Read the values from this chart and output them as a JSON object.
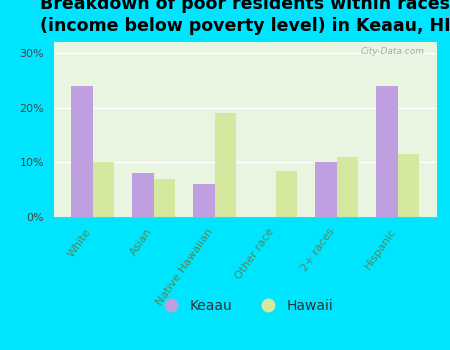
{
  "title": "Breakdown of poor residents within races\n(income below poverty level) in Keaau, HI",
  "categories": [
    "White",
    "Asian",
    "Native Hawaiian",
    "Other race",
    "2+ races",
    "Hispanic"
  ],
  "keaau_values": [
    24,
    8,
    6,
    0,
    10,
    24
  ],
  "hawaii_values": [
    10,
    7,
    19,
    8.5,
    11,
    11.5
  ],
  "keaau_color": "#bf9fdf",
  "hawaii_color": "#d4e8a0",
  "background_outer": "#00e5ff",
  "background_plot": "#e8f5e0",
  "yticks": [
    0,
    10,
    20,
    30
  ],
  "ylim": [
    0,
    32
  ],
  "bar_width": 0.35,
  "legend_labels": [
    "Keaau",
    "Hawaii"
  ],
  "title_fontsize": 12.5,
  "tick_fontsize": 8,
  "xtick_color": "#558855",
  "ytick_color": "#444444"
}
